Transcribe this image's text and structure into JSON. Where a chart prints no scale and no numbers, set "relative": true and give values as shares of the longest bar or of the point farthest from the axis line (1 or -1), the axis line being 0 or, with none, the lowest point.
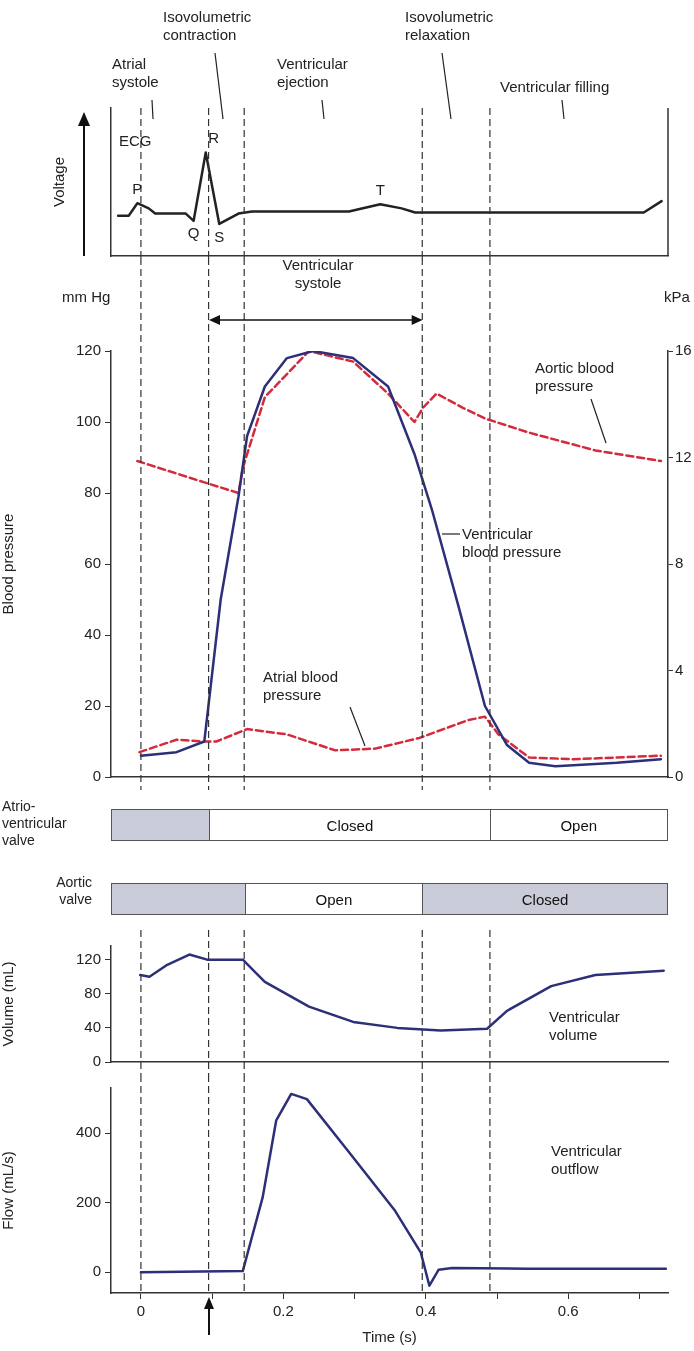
{
  "chart_data": [
    {
      "type": "line",
      "relative": true,
      "ylabel": "Voltage",
      "xlim": [
        -0.042,
        0.74
      ],
      "tick_labels": false,
      "marker": "none",
      "series": [
        {
          "name": "ECG",
          "color": "#222222",
          "x": [
            -0.032,
            -0.017,
            -0.005,
            0.011,
            0.02,
            0.063,
            0.074,
            0.091,
            0.11,
            0.137,
            0.156,
            0.292,
            0.336,
            0.366,
            0.385,
            0.706,
            0.731
          ],
          "values": [
            0.39,
            0.39,
            0.51,
            0.46,
            0.41,
            0.41,
            0.34,
            1,
            0.31,
            0.41,
            0.43,
            0.43,
            0.5,
            0.46,
            0.42,
            0.42,
            0.53
          ]
        }
      ],
      "annotations": [
        "Atrial systole",
        "Isovolumetric contraction",
        "Ventricular ejection",
        "Isovolumetric relaxation",
        "Ventricular filling",
        {
          "text": "P",
          "x": -0.005,
          "y": 0.51
        },
        {
          "text": "Q",
          "x": 0.074,
          "y": 0.34
        },
        {
          "text": "R",
          "x": 0.091,
          "y": 1
        },
        {
          "text": "S",
          "x": 0.11,
          "y": 0.31
        },
        {
          "text": "T",
          "x": 0.336,
          "y": 0.5
        }
      ],
      "ref_lines": [
        {
          "axis": "x",
          "value": 0,
          "line_style": "dashed",
          "color": "#333333"
        },
        {
          "axis": "x",
          "value": 0.095,
          "line_style": "dashed",
          "color": "#333333"
        },
        {
          "axis": "x",
          "value": 0.145,
          "line_style": "dashed",
          "color": "#333333"
        },
        {
          "axis": "x",
          "value": 0.395,
          "line_style": "dashed",
          "color": "#333333"
        },
        {
          "axis": "x",
          "value": 0.49,
          "line_style": "dashed",
          "color": "#333333"
        }
      ]
    },
    {
      "type": "line",
      "ylabel": "Blood pressure",
      "y2label": "kPa",
      "xlim": [
        -0.042,
        0.74
      ],
      "ylim": [
        0,
        120
      ],
      "yticks": [
        0,
        20,
        40,
        60,
        80,
        100,
        120
      ],
      "y2lim": [
        0,
        16
      ],
      "y2ticks": [
        0,
        4,
        8,
        12,
        16
      ],
      "tick_labels": "y",
      "marker": "none",
      "series": [
        {
          "name": "Ventricular blood pressure",
          "color": "#2d2f78",
          "line_style": "solid",
          "x": [
            0,
            0.05,
            0.089,
            0.112,
            0.137,
            0.149,
            0.174,
            0.205,
            0.242,
            0.298,
            0.347,
            0.384,
            0.409,
            0.446,
            0.483,
            0.514,
            0.545,
            0.582,
            0.668,
            0.73
          ],
          "values": [
            6,
            7,
            10,
            50,
            79,
            96,
            110,
            118,
            120,
            118,
            110,
            91,
            75,
            48,
            20,
            9,
            4,
            3,
            4,
            5
          ]
        },
        {
          "name": "Aortic blood pressure",
          "color": "#d42a3c",
          "line_style": "dashed",
          "x": [
            -0.005,
            0.089,
            0.137,
            0.143,
            0.174,
            0.236,
            0.298,
            0.347,
            0.384,
            0.396,
            0.415,
            0.452,
            0.483,
            0.545,
            0.638,
            0.73
          ],
          "values": [
            89,
            83,
            80,
            87,
            107,
            120,
            117,
            108,
            100,
            104,
            108,
            104,
            101,
            97,
            92,
            89
          ]
        },
        {
          "name": "Atrial blood pressure",
          "color": "#d42a3c",
          "line_style": "dashed",
          "x": [
            -0.002,
            0.05,
            0.089,
            0.106,
            0.149,
            0.205,
            0.273,
            0.329,
            0.391,
            0.459,
            0.483,
            0.502,
            0.545,
            0.607,
            0.73
          ],
          "values": [
            7,
            10.5,
            10,
            10,
            13.5,
            12,
            7.5,
            8,
            11,
            16,
            17,
            12,
            5.5,
            5,
            6
          ]
        }
      ],
      "annotations": [
        "mm Hg",
        "Ventricular systole"
      ],
      "ref_lines": [
        {
          "axis": "x",
          "value": 0,
          "line_style": "dashed",
          "color": "#333333"
        },
        {
          "axis": "x",
          "value": 0.095,
          "line_style": "dashed",
          "color": "#333333"
        },
        {
          "axis": "x",
          "value": 0.145,
          "line_style": "dashed",
          "color": "#333333"
        },
        {
          "axis": "x",
          "value": 0.395,
          "line_style": "dashed",
          "color": "#333333"
        },
        {
          "axis": "x",
          "value": 0.49,
          "line_style": "dashed",
          "color": "#333333"
        }
      ]
    },
    {
      "type": "other",
      "annotations": [
        "Atrio-ventricular valve",
        "Closed",
        "Open",
        "Aortic valve",
        "Open",
        "Closed"
      ]
    },
    {
      "type": "line",
      "ylabel": "Volume (mL)",
      "xlim": [
        -0.042,
        0.74
      ],
      "ylim": [
        0,
        136
      ],
      "yticks": [
        0,
        40,
        80,
        120
      ],
      "tick_labels": "y",
      "marker": "none",
      "series": [
        {
          "name": "Ventricular volume",
          "color": "#2d2f78",
          "x": [
            -0.001,
            0.012,
            0.037,
            0.068,
            0.093,
            0.143,
            0.174,
            0.236,
            0.298,
            0.36,
            0.421,
            0.486,
            0.514,
            0.576,
            0.638,
            0.734
          ],
          "values": [
            102,
            100,
            114,
            126,
            120,
            120,
            94,
            65,
            47,
            40,
            37,
            39,
            60,
            89,
            102,
            107
          ]
        }
      ],
      "ref_lines": [
        {
          "axis": "x",
          "value": 0,
          "line_style": "dashed",
          "color": "#333333"
        },
        {
          "axis": "x",
          "value": 0.095,
          "line_style": "dashed",
          "color": "#333333"
        },
        {
          "axis": "x",
          "value": 0.145,
          "line_style": "dashed",
          "color": "#333333"
        },
        {
          "axis": "x",
          "value": 0.395,
          "line_style": "dashed",
          "color": "#333333"
        },
        {
          "axis": "x",
          "value": 0.49,
          "line_style": "dashed",
          "color": "#333333"
        }
      ]
    },
    {
      "type": "line",
      "ylabel": "Flow (mL/s)",
      "xlabel": "Time (s)",
      "xlim": [
        -0.042,
        0.74
      ],
      "ylim": [
        -60,
        530
      ],
      "yticks": [
        0,
        200,
        400
      ],
      "xticks": [
        0,
        {
          "value": 0.1,
          "label": null
        },
        0.2,
        {
          "value": 0.3,
          "label": null
        },
        0.4,
        {
          "value": 0.5,
          "label": null
        },
        0.6,
        {
          "value": 0.7,
          "label": null
        }
      ],
      "marker": "none",
      "series": [
        {
          "name": "Ventricular outflow",
          "color": "#2d2f78",
          "x": [
            0,
            0.143,
            0.171,
            0.19,
            0.211,
            0.233,
            0.295,
            0.356,
            0.393,
            0.405,
            0.418,
            0.437,
            0.542,
            0.737
          ],
          "values": [
            0,
            3,
            216,
            437,
            513,
            498,
            338,
            179,
            56,
            -39,
            7,
            12,
            10,
            10
          ]
        }
      ],
      "ref_lines": [
        {
          "axis": "x",
          "value": 0,
          "line_style": "dashed",
          "color": "#333333"
        },
        {
          "axis": "x",
          "value": 0.095,
          "line_style": "dashed",
          "color": "#333333"
        },
        {
          "axis": "x",
          "value": 0.145,
          "line_style": "dashed",
          "color": "#333333"
        },
        {
          "axis": "x",
          "value": 0.395,
          "line_style": "dashed",
          "color": "#333333"
        },
        {
          "axis": "x",
          "value": 0.49,
          "line_style": "dashed",
          "color": "#333333"
        }
      ]
    }
  ]
}
